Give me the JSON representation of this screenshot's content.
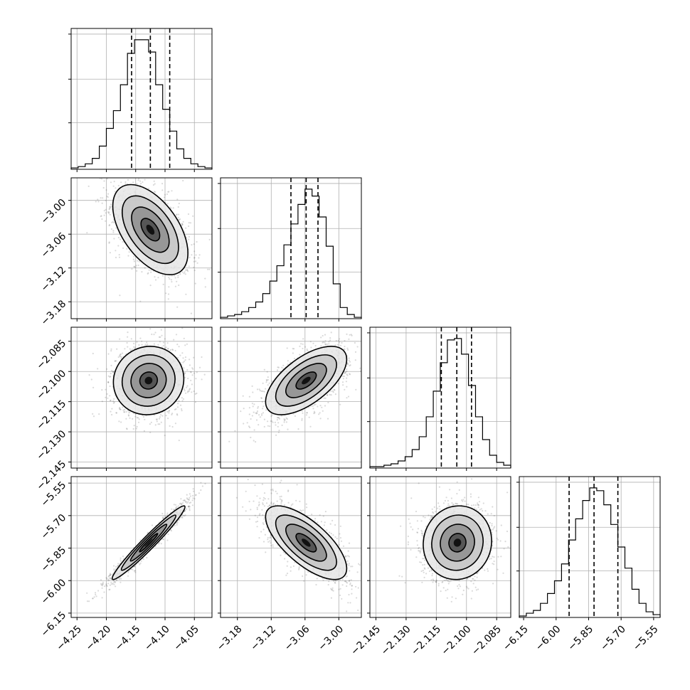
{
  "chart_data": {
    "type": "corner",
    "title": "",
    "grid": true,
    "parameters": [
      {
        "index": 0,
        "axis_range": [
          -4.26,
          -4.02
        ],
        "ticks": [
          -4.25,
          -4.2,
          -4.15,
          -4.1,
          -4.05
        ],
        "tick_labels": [
          "−4.25",
          "−4.20",
          "−4.15",
          "−4.10",
          "−4.05"
        ],
        "quantiles": [
          -4.157,
          -4.125,
          -4.092
        ],
        "hist_bins": [
          -4.26,
          -4.248,
          -4.236,
          -4.224,
          -4.212,
          -4.2,
          -4.188,
          -4.176,
          -4.164,
          -4.152,
          -4.14,
          -4.128,
          -4.116,
          -4.104,
          -4.092,
          -4.08,
          -4.068,
          -4.056,
          -4.044,
          -4.032,
          -4.02
        ],
        "hist_counts": [
          1,
          2,
          4,
          8,
          17,
          30,
          43,
          62,
          85,
          95,
          95,
          86,
          62,
          44,
          28,
          15,
          8,
          4,
          2,
          1
        ]
      },
      {
        "index": 1,
        "axis_range": [
          -3.21,
          -2.96
        ],
        "ticks": [
          -3.18,
          -3.12,
          -3.06,
          -3.0
        ],
        "tick_labels": [
          "−3.18",
          "−3.12",
          "−3.06",
          "−3.00"
        ],
        "quantiles": [
          -3.085,
          -3.058,
          -3.037
        ],
        "hist_bins": [
          -3.21,
          -3.1975,
          -3.185,
          -3.1725,
          -3.16,
          -3.1475,
          -3.135,
          -3.1225,
          -3.11,
          -3.0975,
          -3.085,
          -3.0725,
          -3.06,
          -3.0475,
          -3.035,
          -3.0225,
          -3.01,
          -2.9975,
          -2.985,
          -2.9725,
          -2.96
        ],
        "hist_counts": [
          1,
          2,
          3,
          5,
          8,
          12,
          18,
          27,
          38,
          53,
          68,
          82,
          93,
          88,
          73,
          52,
          25,
          8,
          3,
          1
        ]
      },
      {
        "index": 2,
        "axis_range": [
          -2.148,
          -2.078
        ],
        "ticks": [
          -2.145,
          -2.13,
          -2.115,
          -2.1,
          -2.085
        ],
        "tick_labels": [
          "−2.145",
          "−2.130",
          "−2.115",
          "−2.100",
          "−2.085"
        ],
        "quantiles": [
          -2.1125,
          -2.1048,
          -2.0975
        ],
        "hist_bins": [
          -2.148,
          -2.1445,
          -2.141,
          -2.1375,
          -2.134,
          -2.1305,
          -2.127,
          -2.1235,
          -2.12,
          -2.1165,
          -2.113,
          -2.1095,
          -2.106,
          -2.1025,
          -2.099,
          -2.0955,
          -2.092,
          -2.0885,
          -2.085,
          -2.0815,
          -2.078
        ],
        "hist_counts": [
          1,
          1,
          2,
          3,
          5,
          8,
          13,
          22,
          36,
          54,
          74,
          90,
          91,
          80,
          58,
          36,
          20,
          9,
          4,
          2
        ]
      },
      {
        "index": 3,
        "axis_range": [
          -6.17,
          -5.52
        ],
        "ticks": [
          -6.15,
          -6.0,
          -5.85,
          -5.7,
          -5.55
        ],
        "tick_labels": [
          "−6.15",
          "−6.00",
          "−5.85",
          "−5.70",
          "−5.55"
        ],
        "quantiles": [
          -5.94,
          -5.825,
          -5.715
        ],
        "hist_bins": [
          -6.17,
          -6.1375,
          -6.105,
          -6.0725,
          -6.04,
          -6.0075,
          -5.975,
          -5.9425,
          -5.91,
          -5.8775,
          -5.845,
          -5.8125,
          -5.78,
          -5.7475,
          -5.715,
          -5.6825,
          -5.65,
          -5.6175,
          -5.585,
          -5.5525,
          -5.52
        ],
        "hist_counts": [
          1,
          3,
          5,
          10,
          17,
          26,
          38,
          55,
          70,
          83,
          92,
          90,
          80,
          66,
          50,
          35,
          20,
          10,
          4,
          2
        ]
      }
    ],
    "pairs": [
      {
        "x": 0,
        "y": 1,
        "mean": [
          -4.125,
          -3.052
        ],
        "sd": [
          0.032,
          0.04
        ],
        "rho": -0.52
      },
      {
        "x": 0,
        "y": 2,
        "mean": [
          -4.128,
          -2.1045
        ],
        "sd": [
          0.03,
          0.0085
        ],
        "rho": 0.05
      },
      {
        "x": 1,
        "y": 2,
        "mean": [
          -3.058,
          -2.1045
        ],
        "sd": [
          0.036,
          0.0085
        ],
        "rho": 0.62
      },
      {
        "x": 0,
        "y": 3,
        "mean": [
          -4.128,
          -5.825
        ],
        "sd": [
          0.031,
          0.085
        ],
        "rho": 0.97
      },
      {
        "x": 1,
        "y": 3,
        "mean": [
          -3.058,
          -5.825
        ],
        "sd": [
          0.036,
          0.085
        ],
        "rho": -0.7
      },
      {
        "x": 2,
        "y": 3,
        "mean": [
          -2.1045,
          -5.825
        ],
        "sd": [
          0.0085,
          0.085
        ],
        "rho": 0.05
      }
    ],
    "contour_sigmas": [
      0.5,
      1.0,
      1.5,
      2.0
    ]
  }
}
